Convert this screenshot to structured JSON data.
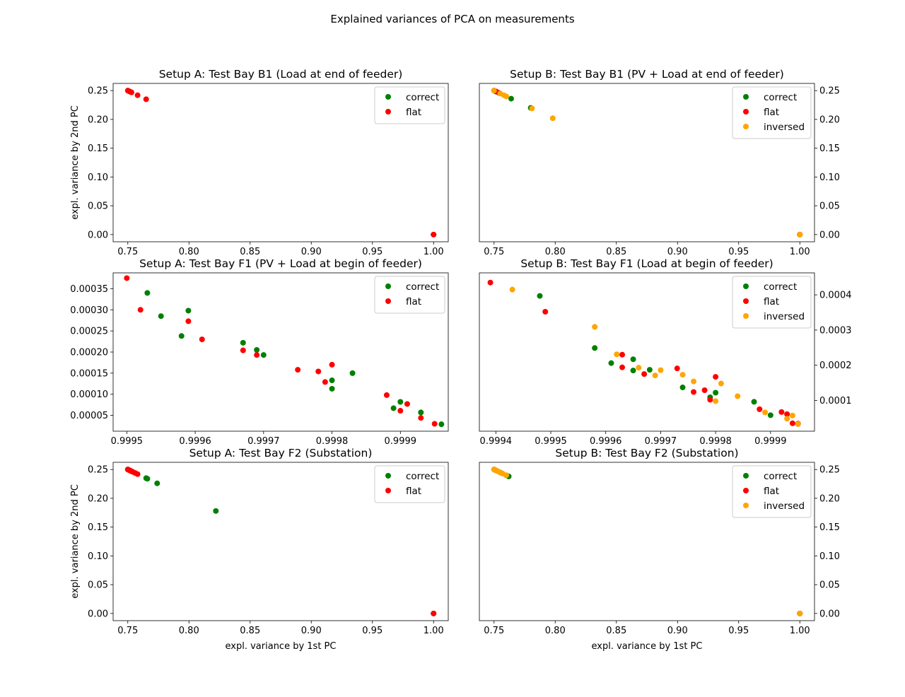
{
  "figure": {
    "suptitle": "Explained variances of PCA on measurements"
  },
  "colors": {
    "correct": "#008000",
    "flat": "#ff0000",
    "inversed": "#ffa500"
  },
  "chart_data": [
    {
      "type": "scatter",
      "title": "Setup A: Test Bay B1 (Load at end of feeder)",
      "xlabel": "",
      "ylabel": "expl. variance by 2nd PC",
      "xlim": [
        0.738,
        1.012
      ],
      "ylim": [
        -0.0125,
        0.2625
      ],
      "xticks": [
        "0.75",
        "0.80",
        "0.85",
        "0.90",
        "0.95",
        "1.00"
      ],
      "yticks": [
        "0.00",
        "0.05",
        "0.10",
        "0.15",
        "0.20",
        "0.25"
      ],
      "legend": "top-right",
      "series": [
        {
          "name": "correct",
          "points": [
            [
              1.0,
              0.0
            ]
          ]
        },
        {
          "name": "flat",
          "points": [
            [
              0.75,
              0.25
            ],
            [
              0.751,
              0.249
            ],
            [
              0.752,
              0.248
            ],
            [
              0.753,
              0.247
            ],
            [
              0.758,
              0.242
            ],
            [
              0.765,
              0.235
            ],
            [
              1.0,
              0.0
            ]
          ]
        }
      ]
    },
    {
      "type": "scatter",
      "title": "Setup B: Test Bay B1 (PV + Load at end of feeder)",
      "xlabel": "",
      "ylabel": "",
      "xlim": [
        0.738,
        1.012
      ],
      "ylim": [
        -0.0125,
        0.2625
      ],
      "xticks": [
        "0.75",
        "0.80",
        "0.85",
        "0.90",
        "0.95",
        "1.00"
      ],
      "yticks": [
        "0.00",
        "0.05",
        "0.10",
        "0.15",
        "0.20",
        "0.25"
      ],
      "legend": "top-right",
      "series": [
        {
          "name": "correct",
          "points": [
            [
              0.75,
              0.25
            ],
            [
              0.752,
              0.248
            ],
            [
              0.764,
              0.236
            ],
            [
              0.78,
              0.22
            ],
            [
              1.0,
              0.0
            ]
          ]
        },
        {
          "name": "flat",
          "points": [
            [
              0.751,
              0.249
            ],
            [
              0.754,
              0.246
            ],
            [
              1.0,
              0.0
            ]
          ]
        },
        {
          "name": "inversed",
          "points": [
            [
              0.75,
              0.25
            ],
            [
              0.755,
              0.245
            ],
            [
              0.758,
              0.242
            ],
            [
              0.76,
              0.24
            ],
            [
              0.781,
              0.219
            ],
            [
              0.798,
              0.202
            ],
            [
              1.0,
              0.0
            ]
          ]
        }
      ]
    },
    {
      "type": "scatter",
      "title": "Setup A: Test Bay F1 (PV + Load at begin of feeder)",
      "xlabel": "",
      "ylabel": "",
      "xlim": [
        0.99948,
        0.99997
      ],
      "ylim": [
        1.25e-05,
        0.0003875
      ],
      "xticks": [
        "0.9995",
        "0.9996",
        "0.9997",
        "0.9998",
        "0.9999"
      ],
      "yticks": [
        "0.00005",
        "0.00010",
        "0.00015",
        "0.00020",
        "0.00025",
        "0.00030",
        "0.00035"
      ],
      "legend": "top-right",
      "series": [
        {
          "name": "correct",
          "points": [
            [
              0.99953,
              0.00034
            ],
            [
              0.99955,
              0.000285
            ],
            [
              0.99958,
              0.000238
            ],
            [
              0.99959,
              0.000298
            ],
            [
              0.99967,
              0.000222
            ],
            [
              0.99969,
              0.000205
            ],
            [
              0.9997,
              0.000193
            ],
            [
              0.9998,
              0.000133
            ],
            [
              0.9998,
              0.000113
            ],
            [
              0.99983,
              0.00015
            ],
            [
              0.99989,
              6.7e-05
            ],
            [
              0.9999,
              8.2e-05
            ],
            [
              0.99993,
              5.7e-05
            ],
            [
              0.99996,
              2.9e-05
            ]
          ]
        },
        {
          "name": "flat",
          "points": [
            [
              0.9995,
              0.000375
            ],
            [
              0.99952,
              0.0003
            ],
            [
              0.99959,
              0.000273
            ],
            [
              0.99961,
              0.00023
            ],
            [
              0.99967,
              0.000204
            ],
            [
              0.99969,
              0.000193
            ],
            [
              0.99975,
              0.000158
            ],
            [
              0.99978,
              0.000154
            ],
            [
              0.99979,
              0.000129
            ],
            [
              0.9998,
              0.00017
            ],
            [
              0.99988,
              9.8e-05
            ],
            [
              0.9999,
              6.1e-05
            ],
            [
              0.99991,
              7.7e-05
            ],
            [
              0.99993,
              4.4e-05
            ],
            [
              0.99995,
              3e-05
            ]
          ]
        }
      ]
    },
    {
      "type": "scatter",
      "title": "Setup B: Test Bay F1 (Load at begin of feeder)",
      "xlabel": "",
      "ylabel": "",
      "xlim": [
        0.99937,
        0.99998
      ],
      "ylim": [
        1.25e-05,
        0.0004625
      ],
      "xticks": [
        "0.9994",
        "0.9995",
        "0.9996",
        "0.9997",
        "0.9998",
        "0.9999"
      ],
      "yticks": [
        "0.0001",
        "0.0002",
        "0.0003",
        "0.0004"
      ],
      "legend": "top-right",
      "series": [
        {
          "name": "correct",
          "points": [
            [
              0.99948,
              0.000397
            ],
            [
              0.99958,
              0.000249
            ],
            [
              0.99961,
              0.000206
            ],
            [
              0.99965,
              0.000217
            ],
            [
              0.99965,
              0.000185
            ],
            [
              0.99968,
              0.000187
            ],
            [
              0.99974,
              0.000137
            ],
            [
              0.99979,
              0.000109
            ],
            [
              0.9998,
              0.000122
            ],
            [
              0.99987,
              9.6e-05
            ],
            [
              0.9999,
              5.8e-05
            ],
            [
              0.99995,
              3.3e-05
            ]
          ]
        },
        {
          "name": "flat",
          "points": [
            [
              0.99939,
              0.000435
            ],
            [
              0.99949,
              0.000352
            ],
            [
              0.99963,
              0.00023
            ],
            [
              0.99963,
              0.000194
            ],
            [
              0.99967,
              0.000175
            ],
            [
              0.99973,
              0.000191
            ],
            [
              0.99976,
              0.000124
            ],
            [
              0.99978,
              0.000129
            ],
            [
              0.99979,
              0.000102
            ],
            [
              0.9998,
              0.000167
            ],
            [
              0.99988,
              7.5e-05
            ],
            [
              0.99992,
              6.7e-05
            ],
            [
              0.99993,
              6.1e-05
            ],
            [
              0.99994,
              3.5e-05
            ],
            [
              0.99995,
              3.4e-05
            ]
          ]
        },
        {
          "name": "inversed",
          "points": [
            [
              0.99943,
              0.000415
            ],
            [
              0.99958,
              0.000309
            ],
            [
              0.99962,
              0.000231
            ],
            [
              0.99966,
              0.000193
            ],
            [
              0.99969,
              0.000171
            ],
            [
              0.9997,
              0.000186
            ],
            [
              0.99974,
              0.000173
            ],
            [
              0.99976,
              0.000154
            ],
            [
              0.9998,
              9.8e-05
            ],
            [
              0.99981,
              0.000148
            ],
            [
              0.99984,
              0.000112
            ],
            [
              0.99989,
              6.6e-05
            ],
            [
              0.99993,
              4.8e-05
            ],
            [
              0.99994,
              5.7e-05
            ],
            [
              0.99995,
              3.3e-05
            ]
          ]
        }
      ]
    },
    {
      "type": "scatter",
      "title": "Setup A: Test Bay F2 (Substation)",
      "xlabel": "expl. variance by 1st PC",
      "ylabel": "expl. variance by 2nd PC",
      "xlim": [
        0.738,
        1.012
      ],
      "ylim": [
        -0.0125,
        0.2625
      ],
      "xticks": [
        "0.75",
        "0.80",
        "0.85",
        "0.90",
        "0.95",
        "1.00"
      ],
      "yticks": [
        "0.00",
        "0.05",
        "0.10",
        "0.15",
        "0.20",
        "0.25"
      ],
      "legend": "top-right",
      "series": [
        {
          "name": "correct",
          "points": [
            [
              0.75,
              0.25
            ],
            [
              0.752,
              0.248
            ],
            [
              0.765,
              0.235
            ],
            [
              0.766,
              0.234
            ],
            [
              0.774,
              0.226
            ],
            [
              0.822,
              0.178
            ],
            [
              1.0,
              0.0
            ]
          ]
        },
        {
          "name": "flat",
          "points": [
            [
              0.75,
              0.25
            ],
            [
              0.751,
              0.249
            ],
            [
              0.752,
              0.248
            ],
            [
              0.753,
              0.247
            ],
            [
              0.754,
              0.246
            ],
            [
              0.756,
              0.244
            ],
            [
              0.758,
              0.242
            ],
            [
              1.0,
              0.0
            ]
          ]
        }
      ]
    },
    {
      "type": "scatter",
      "title": "Setup B: Test Bay F2 (Substation)",
      "xlabel": "expl. variance by 1st PC",
      "ylabel": "",
      "xlim": [
        0.738,
        1.012
      ],
      "ylim": [
        -0.0125,
        0.2625
      ],
      "xticks": [
        "0.75",
        "0.80",
        "0.85",
        "0.90",
        "0.95",
        "1.00"
      ],
      "yticks": [
        "0.00",
        "0.05",
        "0.10",
        "0.15",
        "0.20",
        "0.25"
      ],
      "legend": "top-right",
      "series": [
        {
          "name": "correct",
          "points": [
            [
              0.75,
              0.25
            ],
            [
              0.755,
              0.245
            ],
            [
              0.76,
              0.24
            ],
            [
              0.762,
              0.238
            ],
            [
              1.0,
              0.0
            ]
          ]
        },
        {
          "name": "flat",
          "points": [
            [
              0.751,
              0.249
            ],
            [
              1.0,
              0.0
            ]
          ]
        },
        {
          "name": "inversed",
          "points": [
            [
              0.75,
              0.25
            ],
            [
              0.751,
              0.249
            ],
            [
              0.752,
              0.248
            ],
            [
              0.753,
              0.247
            ],
            [
              0.755,
              0.245
            ],
            [
              0.757,
              0.243
            ],
            [
              0.76,
              0.24
            ],
            [
              1.0,
              0.0
            ]
          ]
        }
      ]
    }
  ]
}
